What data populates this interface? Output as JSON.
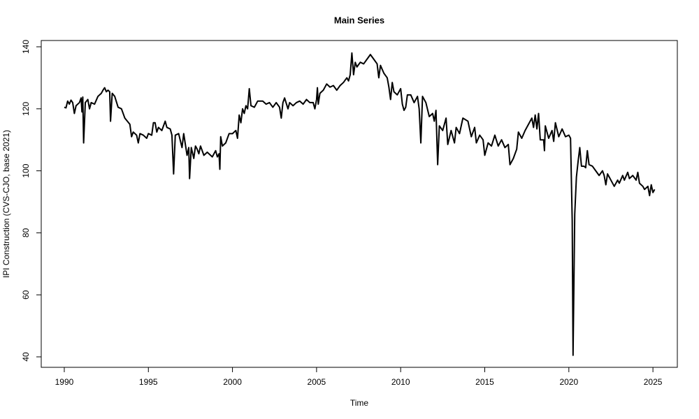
{
  "chart_data": {
    "type": "line",
    "title": "Main Series",
    "x_label": "Time",
    "y_label": "IPI Construction (CVS-CJO, base 2021)",
    "color": "#000000",
    "xlim": [
      1988.63,
      2026.45
    ],
    "ylim": [
      36.62,
      142.03
    ],
    "xticks": [
      1990,
      1995,
      2000,
      2005,
      2010,
      2015,
      2020,
      2025
    ],
    "yticks": [
      40,
      60,
      80,
      100,
      120,
      140
    ],
    "x": [
      1990.0,
      1990.1,
      1990.2,
      1990.3,
      1990.4,
      1990.5,
      1990.6,
      1990.7,
      1990.9,
      1991.0,
      1991.05,
      1991.1,
      1991.15,
      1991.25,
      1991.4,
      1991.5,
      1991.6,
      1991.8,
      1992.0,
      1992.2,
      1992.3,
      1992.4,
      1992.5,
      1992.6,
      1992.7,
      1992.75,
      1992.85,
      1993.0,
      1993.2,
      1993.4,
      1993.6,
      1993.9,
      1994.0,
      1994.1,
      1994.3,
      1994.4,
      1994.5,
      1994.7,
      1994.9,
      1995.0,
      1995.2,
      1995.3,
      1995.4,
      1995.5,
      1995.6,
      1995.8,
      1996.0,
      1996.1,
      1996.3,
      1996.4,
      1996.5,
      1996.6,
      1996.8,
      1997.0,
      1997.1,
      1997.3,
      1997.4,
      1997.45,
      1997.55,
      1997.7,
      1997.8,
      1997.9,
      1998.0,
      1998.1,
      1998.3,
      1998.5,
      1998.8,
      1999.0,
      1999.1,
      1999.2,
      1999.25,
      1999.3,
      1999.4,
      1999.6,
      1999.8,
      2000.0,
      2000.2,
      2000.3,
      2000.4,
      2000.5,
      2000.6,
      2000.7,
      2000.8,
      2000.9,
      2001.0,
      2001.1,
      2001.3,
      2001.5,
      2001.8,
      2002.0,
      2002.2,
      2002.4,
      2002.6,
      2002.8,
      2002.9,
      2003.0,
      2003.1,
      2003.3,
      2003.4,
      2003.6,
      2003.8,
      2004.0,
      2004.2,
      2004.4,
      2004.6,
      2004.8,
      2004.9,
      2005.0,
      2005.05,
      2005.1,
      2005.2,
      2005.4,
      2005.6,
      2005.8,
      2006.0,
      2006.2,
      2006.4,
      2006.6,
      2006.8,
      2006.9,
      2007.0,
      2007.1,
      2007.2,
      2007.3,
      2007.4,
      2007.6,
      2007.8,
      2008.0,
      2008.2,
      2008.4,
      2008.6,
      2008.7,
      2008.8,
      2009.0,
      2009.2,
      2009.3,
      2009.4,
      2009.5,
      2009.6,
      2009.8,
      2010.0,
      2010.1,
      2010.2,
      2010.3,
      2010.4,
      2010.6,
      2010.8,
      2011.0,
      2011.1,
      2011.2,
      2011.3,
      2011.5,
      2011.7,
      2011.9,
      2012.0,
      2012.1,
      2012.2,
      2012.3,
      2012.5,
      2012.7,
      2012.8,
      2013.0,
      2013.2,
      2013.3,
      2013.5,
      2013.7,
      2014.0,
      2014.2,
      2014.4,
      2014.5,
      2014.7,
      2014.9,
      2015.0,
      2015.2,
      2015.4,
      2015.6,
      2015.8,
      2016.0,
      2016.2,
      2016.4,
      2016.5,
      2016.7,
      2016.9,
      2017.0,
      2017.2,
      2017.4,
      2017.6,
      2017.8,
      2017.9,
      2018.0,
      2018.1,
      2018.2,
      2018.3,
      2018.5,
      2018.55,
      2018.6,
      2018.8,
      2019.0,
      2019.1,
      2019.2,
      2019.4,
      2019.6,
      2019.8,
      2020.0,
      2020.1,
      2020.2,
      2020.25,
      2020.35,
      2020.45,
      2020.55,
      2020.65,
      2020.75,
      2020.9,
      2021.0,
      2021.1,
      2021.2,
      2021.4,
      2021.6,
      2021.8,
      2022.0,
      2022.1,
      2022.2,
      2022.3,
      2022.5,
      2022.7,
      2022.9,
      2023.0,
      2023.2,
      2023.3,
      2023.5,
      2023.6,
      2023.8,
      2024.0,
      2024.1,
      2024.2,
      2024.4,
      2024.5,
      2024.7,
      2024.8,
      2024.9,
      2025.0,
      2025.1
    ],
    "values": [
      120.5,
      120.3,
      122.5,
      121.5,
      122.8,
      122,
      118.5,
      121,
      122,
      123.5,
      119,
      123.8,
      109,
      122,
      123,
      120,
      122,
      121.5,
      124,
      125,
      126,
      126.8,
      125.5,
      126,
      125.5,
      116,
      125,
      124,
      120.5,
      120,
      117,
      115,
      111,
      112.5,
      111.5,
      109,
      112,
      111.5,
      110.5,
      112,
      111.5,
      115.5,
      115.5,
      112.5,
      114,
      113,
      116,
      114,
      113.5,
      111.5,
      99,
      111.5,
      112,
      107.5,
      112,
      105,
      107.5,
      97.5,
      107.5,
      104,
      108,
      107,
      105.5,
      108,
      105,
      106,
      104.5,
      106.5,
      104.5,
      105.5,
      100.5,
      111,
      108,
      109,
      112,
      112,
      113,
      110.5,
      118,
      115.5,
      120,
      118.5,
      121,
      120,
      126.5,
      121,
      120.5,
      122.5,
      122.5,
      121.5,
      122,
      120.5,
      122,
      120.5,
      117,
      122,
      123.5,
      120,
      122,
      121,
      122,
      122.5,
      121.5,
      123,
      122,
      122,
      120,
      123,
      126.8,
      121.5,
      125,
      126,
      128,
      127,
      127.5,
      126,
      127.5,
      128.5,
      130,
      129,
      131,
      138,
      131,
      135,
      133.5,
      135,
      134.5,
      136,
      137.5,
      136,
      134.5,
      130,
      134,
      131.5,
      130,
      127,
      123,
      128.5,
      125.5,
      124.5,
      126.5,
      121.5,
      119.5,
      120.5,
      124.5,
      124.5,
      122,
      124,
      120,
      109,
      124,
      122,
      117.5,
      118.5,
      116,
      119.5,
      102,
      114.5,
      113,
      117,
      108.5,
      113,
      109,
      114,
      112,
      117,
      116,
      111,
      114,
      109,
      111.5,
      110,
      105,
      109,
      108,
      111.5,
      108,
      110,
      107.5,
      108.5,
      102,
      104,
      107,
      112.5,
      110.5,
      113,
      115,
      117,
      114,
      118,
      113.5,
      118.5,
      110,
      110,
      106.5,
      114.5,
      110.5,
      113,
      109.5,
      115.5,
      111,
      113.5,
      111,
      111.5,
      110.5,
      84,
      40.5,
      86,
      98,
      103,
      107.5,
      101.5,
      101.5,
      101,
      106.5,
      102,
      101.5,
      100,
      98.5,
      100,
      98.5,
      95.5,
      99,
      97,
      95,
      97,
      96,
      98.5,
      97,
      99.5,
      97.5,
      98.5,
      97,
      99.5,
      96,
      95,
      94,
      95,
      92,
      95.5,
      93,
      94
    ]
  }
}
